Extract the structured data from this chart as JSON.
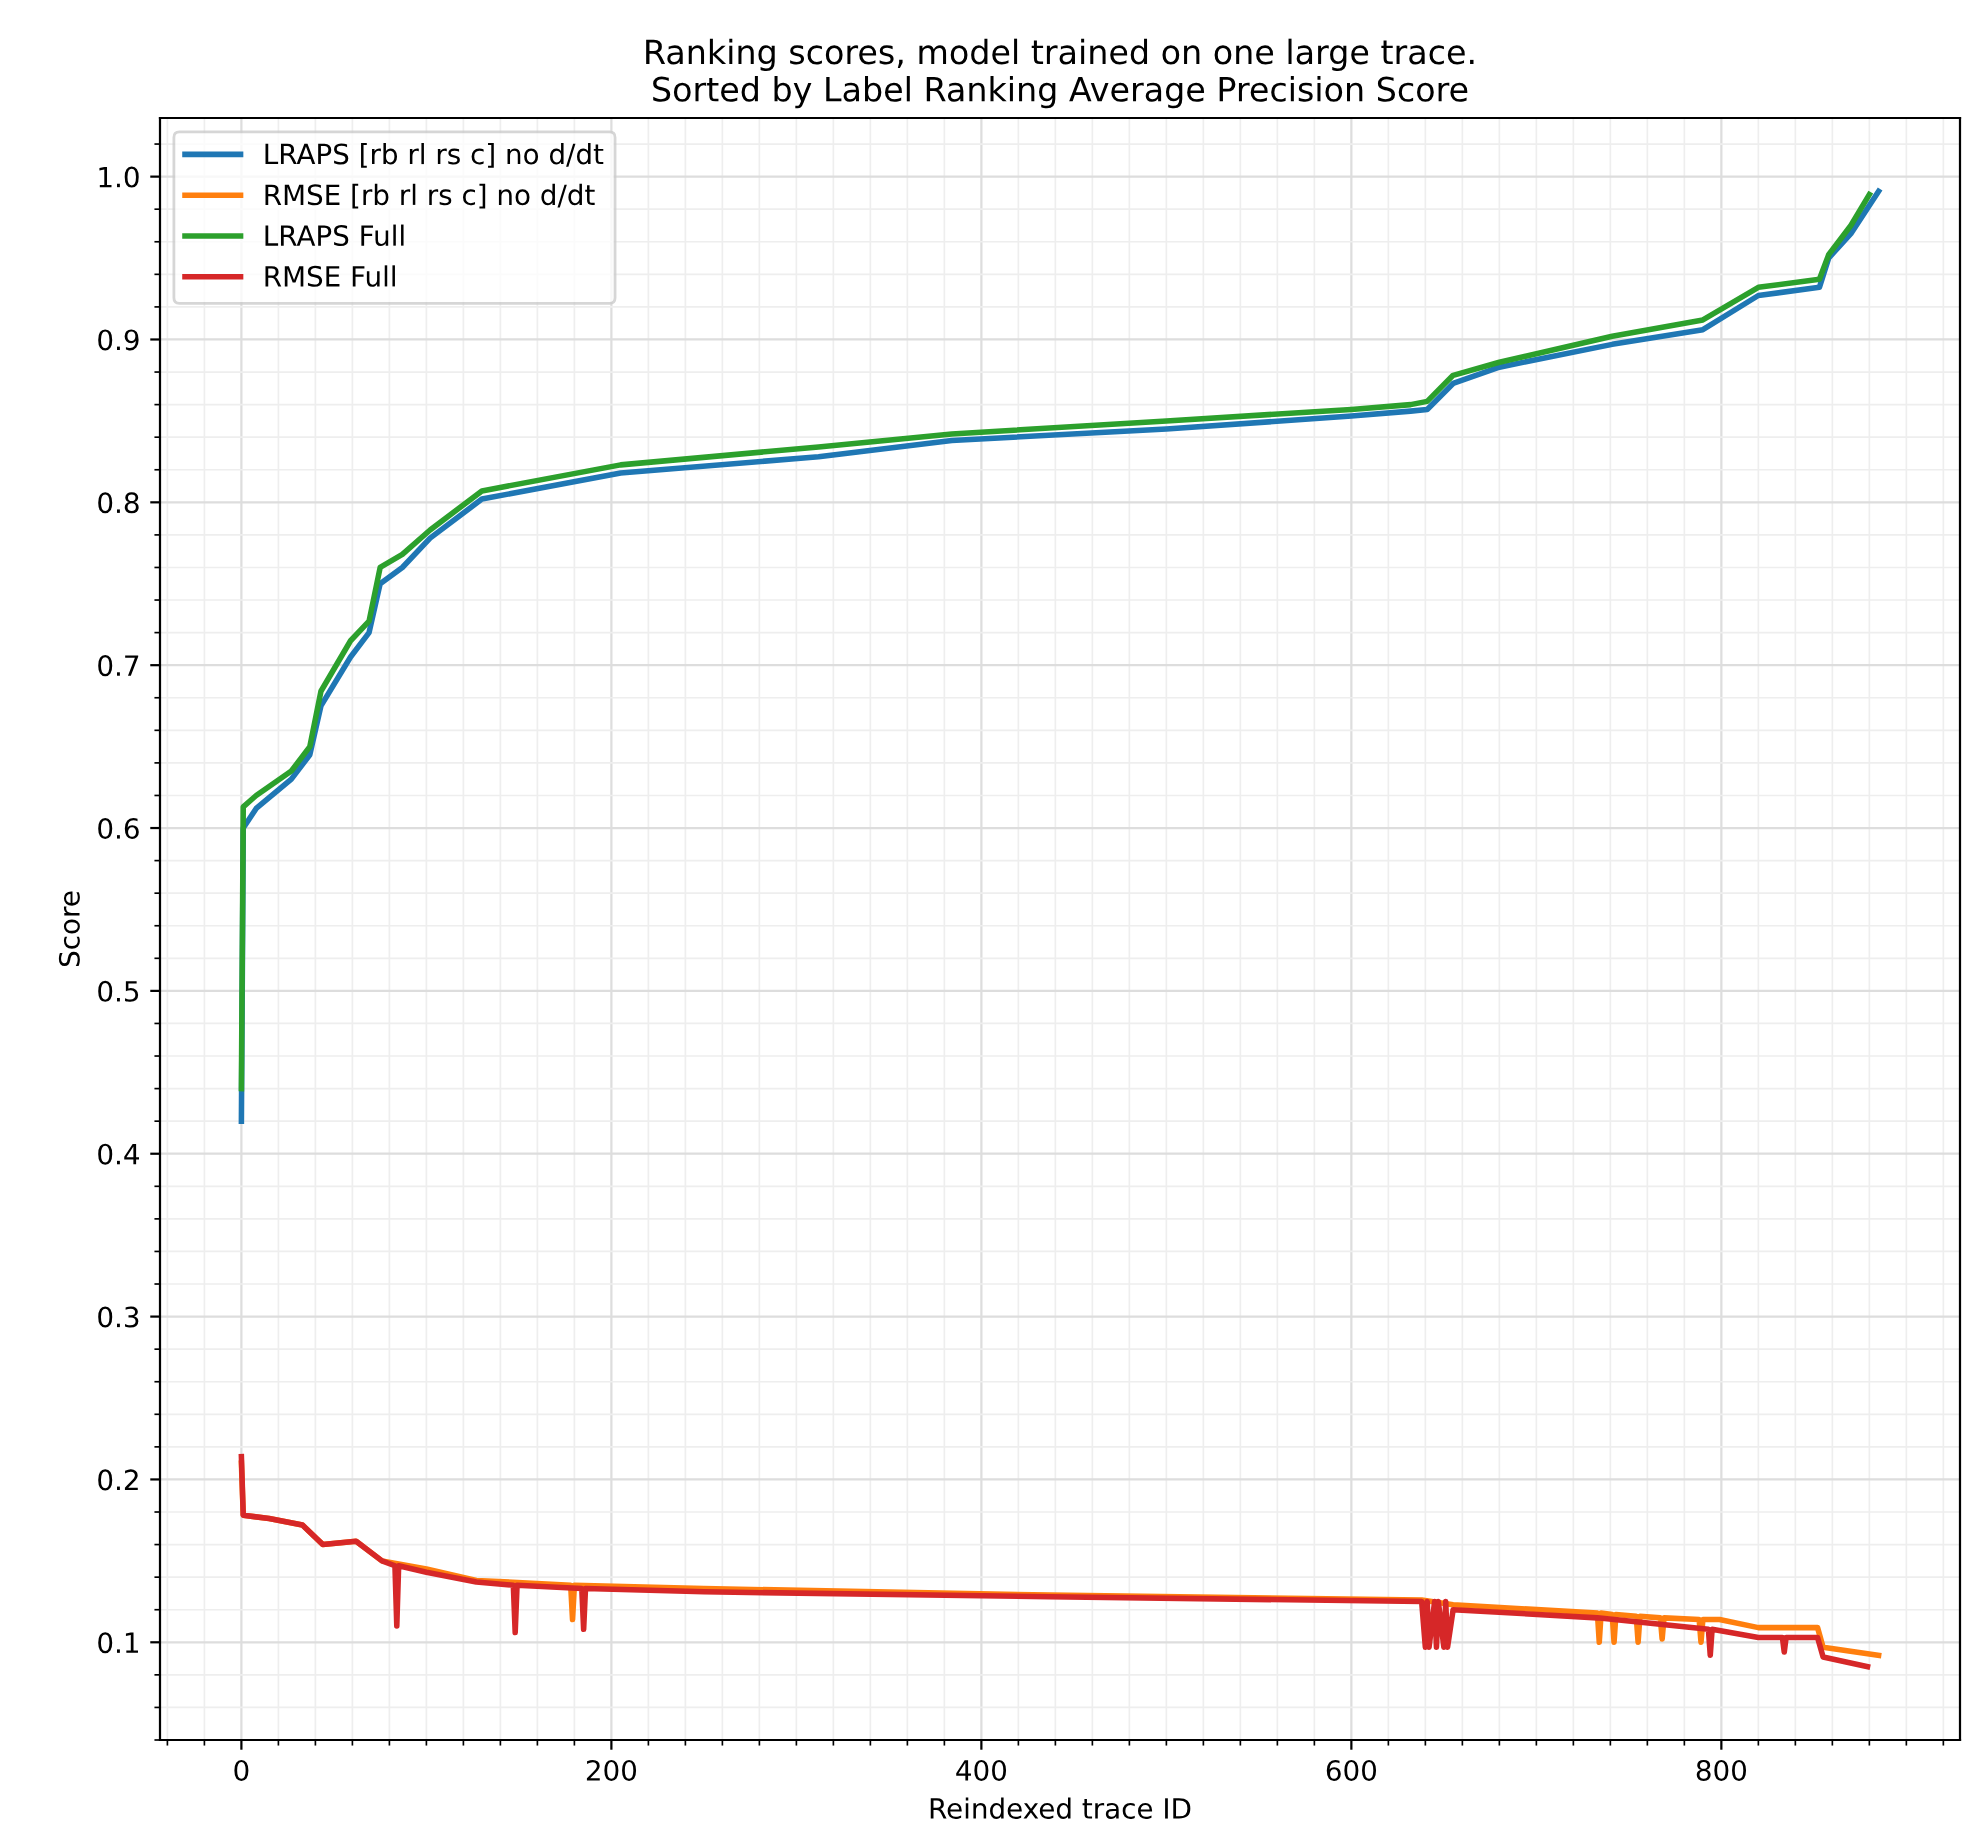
{
  "chart_data": {
    "type": "line",
    "title": "Ranking scores, model trained on one large trace.\nSorted by Label Ranking Average Precision Score",
    "xlabel": "Reindexed trace ID",
    "ylabel": "Score",
    "xlim": [
      -44,
      929
    ],
    "xticks": [
      0,
      200,
      400,
      600,
      800
    ],
    "ylim": [
      0.04,
      1.036
    ],
    "yticks": [
      0.1,
      0.2,
      0.3,
      0.4,
      0.5,
      0.6,
      0.7,
      0.8,
      0.9,
      {
        "value": 1,
        "label": "1.0"
      }
    ],
    "grid": true,
    "legend": "top left",
    "line_style": "solid",
    "series": [
      {
        "name": "LRAPS [rb rl rs c] no d/dt",
        "color": "#1f77b4",
        "x": [
          0,
          1,
          8,
          27,
          37,
          43,
          59,
          69,
          75,
          87,
          102,
          130,
          205,
          312,
          384,
          500,
          600,
          632,
          641,
          655,
          680,
          741,
          790,
          820,
          853,
          858,
          870,
          885
        ],
        "values": [
          0.42,
          0.6,
          0.612,
          0.63,
          0.645,
          0.675,
          0.705,
          0.72,
          0.75,
          0.76,
          0.778,
          0.802,
          0.818,
          0.828,
          0.838,
          0.845,
          0.853,
          0.856,
          0.857,
          0.873,
          0.883,
          0.897,
          0.906,
          0.927,
          0.932,
          0.95,
          0.965,
          0.991
        ]
      },
      {
        "name": "RMSE [rb rl rs c] no d/dt",
        "color": "#ff7f0e",
        "x": [
          0,
          1,
          15,
          33,
          44,
          62,
          76,
          100,
          127,
          178,
          179,
          180,
          250,
          437,
          638,
          655,
          733,
          734,
          735,
          741,
          742,
          743,
          754,
          755,
          756,
          767,
          768,
          769,
          788,
          789,
          790,
          799,
          820,
          852,
          855,
          885
        ],
        "values": [
          0.21,
          0.178,
          0.176,
          0.172,
          0.16,
          0.162,
          0.15,
          0.145,
          0.138,
          0.135,
          0.114,
          0.135,
          0.133,
          0.129,
          0.126,
          0.123,
          0.118,
          0.1,
          0.118,
          0.117,
          0.1,
          0.117,
          0.116,
          0.1,
          0.116,
          0.115,
          0.102,
          0.115,
          0.114,
          0.1,
          0.114,
          0.114,
          0.109,
          0.109,
          0.097,
          0.092
        ]
      },
      {
        "name": "LRAPS Full",
        "color": "#2ca02c",
        "x": [
          0,
          1,
          8,
          27,
          37,
          43,
          59,
          69,
          75,
          87,
          102,
          130,
          205,
          312,
          384,
          500,
          600,
          632,
          641,
          655,
          680,
          741,
          790,
          820,
          853,
          858,
          870,
          880
        ],
        "values": [
          0.44,
          0.613,
          0.62,
          0.635,
          0.65,
          0.684,
          0.715,
          0.727,
          0.76,
          0.768,
          0.783,
          0.807,
          0.823,
          0.834,
          0.842,
          0.85,
          0.857,
          0.86,
          0.862,
          0.878,
          0.886,
          0.902,
          0.912,
          0.932,
          0.937,
          0.952,
          0.97,
          0.989
        ]
      },
      {
        "name": "RMSE Full",
        "color": "#d62728",
        "x": [
          0,
          1,
          15,
          33,
          44,
          62,
          76,
          83,
          84,
          85,
          100,
          127,
          147,
          148,
          149,
          184,
          185,
          186,
          250,
          437,
          638,
          640,
          641,
          642,
          645,
          646,
          647,
          650,
          651,
          652,
          655,
          733,
          793,
          794,
          795,
          820,
          833,
          834,
          835,
          852,
          855,
          879
        ],
        "values": [
          0.214,
          0.178,
          0.176,
          0.172,
          0.16,
          0.162,
          0.15,
          0.147,
          0.11,
          0.147,
          0.143,
          0.137,
          0.135,
          0.106,
          0.135,
          0.133,
          0.108,
          0.133,
          0.131,
          0.128,
          0.125,
          0.097,
          0.125,
          0.097,
          0.125,
          0.097,
          0.125,
          0.097,
          0.125,
          0.097,
          0.12,
          0.115,
          0.108,
          0.092,
          0.108,
          0.103,
          0.103,
          0.094,
          0.103,
          0.103,
          0.091,
          0.085
        ]
      }
    ]
  }
}
